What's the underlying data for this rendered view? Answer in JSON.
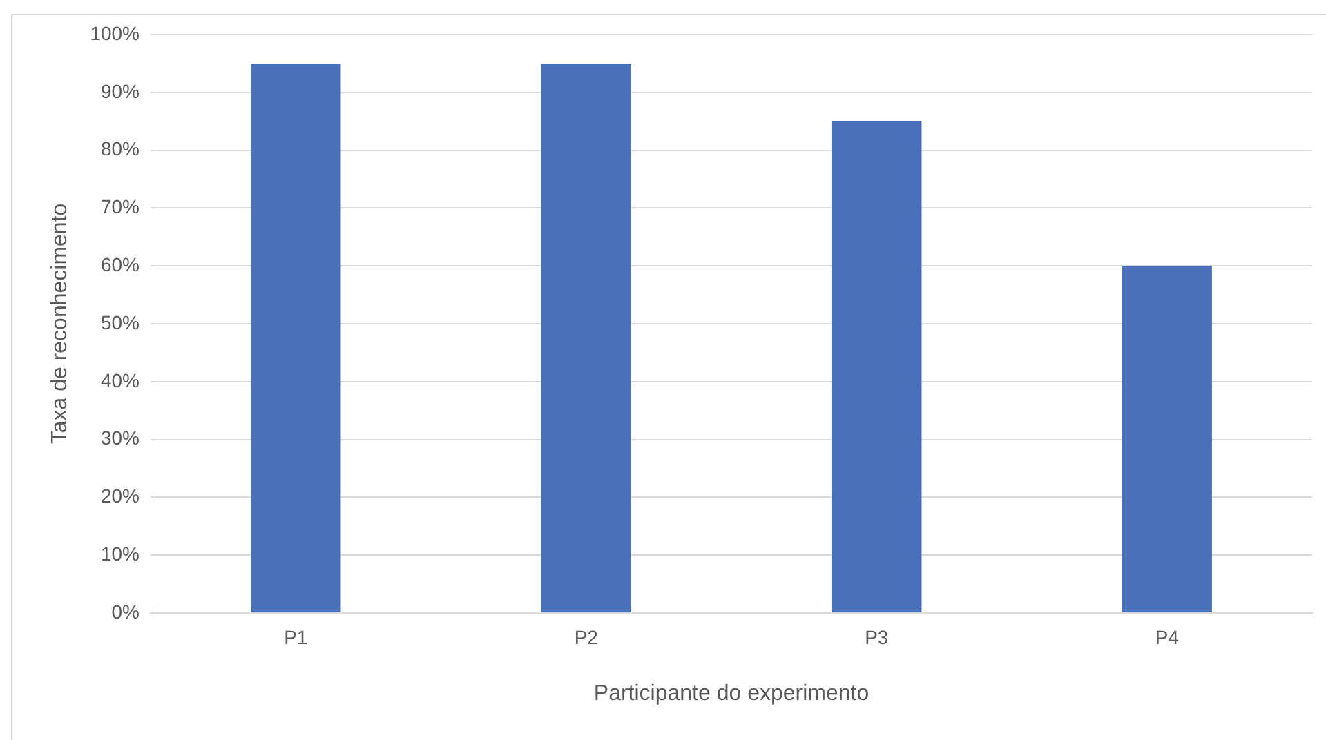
{
  "chart_data": {
    "type": "bar",
    "xlabel": "Participante do experimento",
    "ylabel": "Taxa de reconhecimento",
    "categories": [
      "P1",
      "P2",
      "P3",
      "P4"
    ],
    "values": [
      95,
      95,
      85,
      60
    ],
    "color": "#4a70b7",
    "ylim": [
      0,
      100
    ],
    "yticks": [
      {
        "value": 0,
        "label": "0%"
      },
      {
        "value": 10,
        "label": "10%"
      },
      {
        "value": 20,
        "label": "20%"
      },
      {
        "value": 30,
        "label": "30%"
      },
      {
        "value": 40,
        "label": "40%"
      },
      {
        "value": 50,
        "label": "50%"
      },
      {
        "value": 60,
        "label": "60%"
      },
      {
        "value": 70,
        "label": "70%"
      },
      {
        "value": 80,
        "label": "80%"
      },
      {
        "value": 90,
        "label": "90%"
      },
      {
        "value": 100,
        "label": "100%"
      }
    ],
    "grid": "y"
  }
}
